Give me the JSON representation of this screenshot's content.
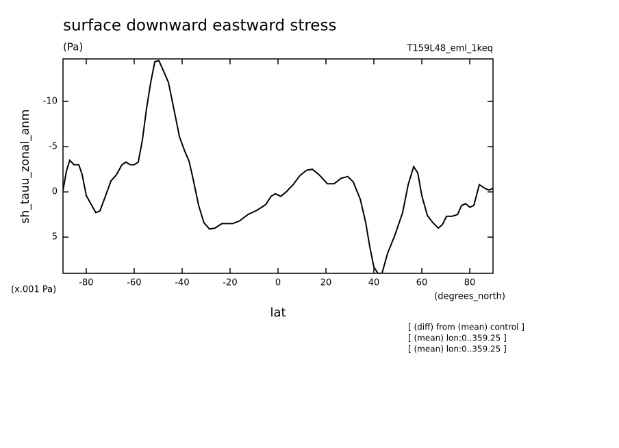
{
  "chart_data": {
    "type": "line",
    "title": "surface downward eastward stress",
    "units": "(Pa)",
    "dataset": "T159L48_eml_1keq",
    "y_label": "sh_tauu_zonal_anm",
    "y_units": "(x.001 Pa)",
    "x_label": "lat",
    "x_units": "(degrees_north)",
    "notes": [
      "[ (diff) from (mean) control ]",
      "[ (mean) lon:0..359.25 ]",
      "[ (mean) lon:0..359.25 ]"
    ],
    "xlim": [
      -89.7,
      89.7
    ],
    "ylim": [
      9.0,
      -14.7
    ],
    "xticks": [
      -80,
      -60,
      -40,
      -20,
      0,
      20,
      40,
      60,
      80
    ],
    "yticks": [
      -10,
      -5,
      0,
      5
    ],
    "series": [
      {
        "color": "#000000",
        "x": [
          -89.7,
          -88.3,
          -86.9,
          -85.1,
          -83.1,
          -81.7,
          -80,
          -77.7,
          -76,
          -74.3,
          -72.6,
          -69.7,
          -67.4,
          -65.1,
          -63.4,
          -61.7,
          -60,
          -58.3,
          -56.6,
          -54.9,
          -53.1,
          -51.4,
          -49.7,
          -48,
          -45.7,
          -43.4,
          -41.1,
          -38.9,
          -37.1,
          -35.4,
          -33.1,
          -30.9,
          -28.6,
          -26.3,
          -23.4,
          -18.9,
          -16,
          -12.6,
          -8.6,
          -5.1,
          -2.9,
          -1.1,
          1.1,
          3.4,
          6.3,
          9.1,
          12,
          14.3,
          17.1,
          20.6,
          23.4,
          26.3,
          29.1,
          31.4,
          34.3,
          36.6,
          38.3,
          40,
          41.7,
          43.4,
          45.7,
          48.6,
          52,
          54.3,
          56.6,
          58.3,
          60,
          62.3,
          64.6,
          66.9,
          68.6,
          70.3,
          72.6,
          74.9,
          76.6,
          78.3,
          80,
          81.7,
          84,
          86.3,
          88,
          89.7
        ],
        "values": [
          -0.15,
          -2.27,
          -3.5,
          -3.0,
          -3.0,
          -1.9,
          0.4,
          1.5,
          2.3,
          2.1,
          0.9,
          -1.2,
          -1.9,
          -3.0,
          -3.3,
          -3.0,
          -3.0,
          -3.3,
          -5.7,
          -9.1,
          -12.1,
          -14.4,
          -14.5,
          -13.5,
          -12.1,
          -9.1,
          -6.1,
          -4.5,
          -3.4,
          -1.4,
          1.5,
          3.4,
          4.1,
          4.0,
          3.5,
          3.5,
          3.2,
          2.5,
          2.0,
          1.4,
          0.5,
          0.2,
          0.5,
          0,
          -0.8,
          -1.8,
          -2.4,
          -2.5,
          -1.9,
          -0.9,
          -0.9,
          -1.5,
          -1.7,
          -1.1,
          0.8,
          3.4,
          6.1,
          8.3,
          9.0,
          9.0,
          6.8,
          4.9,
          2.3,
          -0.8,
          -2.8,
          -2.1,
          0.4,
          2.6,
          3.4,
          4.0,
          3.6,
          2.7,
          2.7,
          2.5,
          1.5,
          1.3,
          1.7,
          1.5,
          -0.8,
          -0.4,
          -0.2,
          -0.4
        ]
      }
    ]
  }
}
